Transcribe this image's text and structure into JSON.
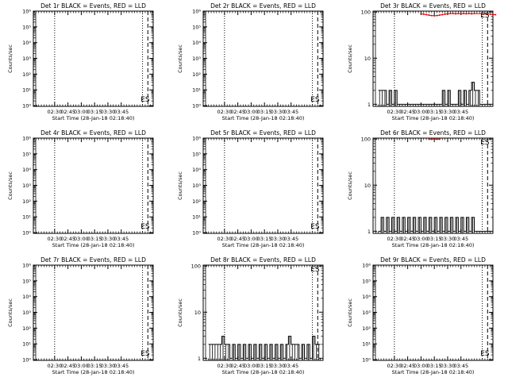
{
  "chart_data": [
    {
      "type": "line",
      "title": "Det 1r BLACK = Events, RED = LLD",
      "xlabel": "Start Time (28-Jan-18 02:18:40)",
      "ylabel": "Counts/sec",
      "ylog": true,
      "ylim": [
        0.9,
        1000000
      ],
      "ytick_labels": [
        "10⁰",
        "10¹",
        "10²",
        "10³",
        "10⁴",
        "10⁵",
        "10⁶"
      ],
      "event_label": "ES",
      "xticks": [
        "02:30",
        "02:45",
        "03:00",
        "03:15",
        "03:30",
        "03:45"
      ],
      "black": [],
      "red": []
    },
    {
      "type": "line",
      "title": "Det 2r BLACK = Events, RED = LLD",
      "xlabel": "Start Time (28-Jan-18 02:18:40)",
      "ylabel": "Counts/sec",
      "ylog": true,
      "ylim": [
        0.9,
        1000000
      ],
      "ytick_labels": [
        "10⁰",
        "10¹",
        "10²",
        "10³",
        "10⁴",
        "10⁵",
        "10⁶"
      ],
      "event_label": "ES",
      "xticks": [
        "02:30",
        "02:45",
        "03:00",
        "03:15",
        "03:30",
        "03:45"
      ],
      "black": [],
      "red": []
    },
    {
      "type": "line",
      "title": "Det 3r BLACK = Events, RED = LLD",
      "xlabel": "Start Time (28-Jan-18 02:18:40)",
      "ylabel": "Counts/sec",
      "ylog": true,
      "ylim": [
        0.9,
        105
      ],
      "ytick_labels": [
        "1",
        "10",
        "100"
      ],
      "event_label": "ES",
      "xticks": [
        "02:30",
        "02:45",
        "03:00",
        "03:15",
        "03:30",
        "03:45"
      ],
      "black": [
        [
          2,
          2
        ],
        [
          3,
          2
        ],
        [
          4,
          2
        ],
        [
          5,
          1
        ],
        [
          6,
          2
        ],
        [
          7,
          1
        ],
        [
          8,
          2
        ],
        [
          9,
          1
        ],
        [
          10,
          1
        ],
        [
          11,
          1
        ],
        [
          12,
          1
        ],
        [
          13,
          1
        ],
        [
          14,
          1
        ],
        [
          15,
          1
        ],
        [
          16,
          1
        ],
        [
          17,
          1
        ],
        [
          18,
          1
        ],
        [
          19,
          1
        ],
        [
          20,
          1
        ],
        [
          21,
          1
        ],
        [
          22,
          1
        ],
        [
          23,
          1
        ],
        [
          24,
          1
        ],
        [
          25,
          1
        ],
        [
          26,
          2
        ],
        [
          27,
          1
        ],
        [
          28,
          2
        ],
        [
          29,
          1
        ],
        [
          30,
          1
        ],
        [
          31,
          1
        ],
        [
          32,
          2
        ],
        [
          33,
          1
        ],
        [
          34,
          2
        ],
        [
          35,
          1
        ],
        [
          36,
          2
        ],
        [
          37,
          3
        ],
        [
          38,
          2
        ],
        [
          39,
          2
        ],
        [
          40,
          1
        ],
        [
          41,
          1
        ],
        [
          42,
          1
        ],
        [
          43,
          1
        ]
      ],
      "red": [
        [
          18,
          92
        ],
        [
          19,
          90
        ],
        [
          20,
          88
        ],
        [
          21,
          86
        ],
        [
          22,
          84
        ],
        [
          23,
          83
        ],
        [
          24,
          84
        ],
        [
          25,
          86
        ],
        [
          26,
          88
        ],
        [
          27,
          90
        ],
        [
          28,
          92
        ],
        [
          29,
          93
        ],
        [
          30,
          93
        ],
        [
          31,
          92
        ],
        [
          32,
          93
        ],
        [
          33,
          92
        ],
        [
          34,
          93
        ],
        [
          35,
          92
        ],
        [
          36,
          93
        ],
        [
          37,
          92
        ],
        [
          38,
          93
        ],
        [
          42,
          92
        ],
        [
          44,
          90
        ],
        [
          45,
          88
        ],
        [
          46,
          88
        ]
      ]
    },
    {
      "type": "line",
      "title": "Det 4r BLACK = Events, RED = LLD",
      "xlabel": "Start Time (28-Jan-18 02:18:40)",
      "ylabel": "Counts/sec",
      "ylog": true,
      "ylim": [
        0.9,
        1000000
      ],
      "ytick_labels": [
        "10⁰",
        "10¹",
        "10²",
        "10³",
        "10⁴",
        "10⁵",
        "10⁶"
      ],
      "event_label": "ES",
      "xticks": [
        "02:30",
        "02:45",
        "03:00",
        "03:15",
        "03:30",
        "03:45"
      ],
      "black": [],
      "red": []
    },
    {
      "type": "line",
      "title": "Det 5r BLACK = Events, RED = LLD",
      "xlabel": "Start Time (28-Jan-18 02:18:40)",
      "ylabel": "Counts/sec",
      "ylog": true,
      "ylim": [
        0.9,
        1000000
      ],
      "ytick_labels": [
        "10⁰",
        "10¹",
        "10²",
        "10³",
        "10⁴",
        "10⁵",
        "10⁶"
      ],
      "event_label": "ES",
      "xticks": [
        "02:30",
        "02:45",
        "03:00",
        "03:15",
        "03:30",
        "03:45"
      ],
      "black": [],
      "red": []
    },
    {
      "type": "line",
      "title": "Det 6r BLACK = Events, RED = LLD",
      "xlabel": "Start Time (28-Jan-18 02:18:40)",
      "ylabel": "Counts/sec",
      "ylog": true,
      "ylim": [
        0.9,
        105
      ],
      "ytick_labels": [
        "1",
        "10",
        "100"
      ],
      "event_label": "ES",
      "xticks": [
        "02:30",
        "02:45",
        "03:00",
        "03:15",
        "03:30",
        "03:45"
      ],
      "black": [
        [
          2,
          1
        ],
        [
          3,
          2
        ],
        [
          4,
          1
        ],
        [
          5,
          2
        ],
        [
          6,
          1
        ],
        [
          7,
          2
        ],
        [
          8,
          1
        ],
        [
          9,
          2
        ],
        [
          10,
          1
        ],
        [
          11,
          2
        ],
        [
          12,
          1
        ],
        [
          13,
          2
        ],
        [
          14,
          1
        ],
        [
          15,
          2
        ],
        [
          16,
          1
        ],
        [
          17,
          2
        ],
        [
          18,
          1
        ],
        [
          19,
          2
        ],
        [
          20,
          1
        ],
        [
          21,
          2
        ],
        [
          22,
          1
        ],
        [
          23,
          2
        ],
        [
          24,
          1
        ],
        [
          25,
          2
        ],
        [
          26,
          1
        ],
        [
          27,
          2
        ],
        [
          28,
          1
        ],
        [
          29,
          2
        ],
        [
          30,
          1
        ],
        [
          31,
          2
        ],
        [
          32,
          1
        ],
        [
          33,
          2
        ],
        [
          34,
          1
        ],
        [
          35,
          2
        ],
        [
          36,
          1
        ],
        [
          37,
          2
        ],
        [
          38,
          1
        ],
        [
          39,
          1
        ],
        [
          40,
          1
        ],
        [
          41,
          1
        ],
        [
          42,
          1
        ],
        [
          43,
          1
        ]
      ],
      "red": [
        [
          21,
          100
        ],
        [
          22,
          99
        ],
        [
          23,
          100
        ],
        [
          24,
          99
        ],
        [
          25,
          100
        ]
      ]
    },
    {
      "type": "line",
      "title": "Det 7r BLACK = Events, RED = LLD",
      "xlabel": "Start Time (28-Jan-18 02:18:40)",
      "ylabel": "Counts/sec",
      "ylog": true,
      "ylim": [
        0.9,
        1000000
      ],
      "ytick_labels": [
        "10⁰",
        "10¹",
        "10²",
        "10³",
        "10⁴",
        "10⁵",
        "10⁶"
      ],
      "event_label": "ES",
      "xticks": [
        "02:30",
        "02:45",
        "03:00",
        "03:15",
        "03:30",
        "03:45"
      ],
      "black": [],
      "red": []
    },
    {
      "type": "line",
      "title": "Det 8r BLACK = Events, RED = LLD",
      "xlabel": "Start Time (28-Jan-18 02:18:40)",
      "ylabel": "Counts/sec",
      "ylog": true,
      "ylim": [
        0.9,
        105
      ],
      "ytick_labels": [
        "1",
        "10",
        "100"
      ],
      "event_label": "ES",
      "xticks": [
        "02:30",
        "02:45",
        "03:00",
        "03:15",
        "03:30",
        "03:45"
      ],
      "black": [
        [
          2,
          2
        ],
        [
          3,
          2
        ],
        [
          4,
          2
        ],
        [
          5,
          2
        ],
        [
          6,
          2
        ],
        [
          7,
          3
        ],
        [
          8,
          2
        ],
        [
          9,
          2
        ],
        [
          10,
          1
        ],
        [
          11,
          2
        ],
        [
          12,
          1
        ],
        [
          13,
          2
        ],
        [
          14,
          1
        ],
        [
          15,
          2
        ],
        [
          16,
          1
        ],
        [
          17,
          2
        ],
        [
          18,
          1
        ],
        [
          19,
          2
        ],
        [
          20,
          1
        ],
        [
          21,
          2
        ],
        [
          22,
          1
        ],
        [
          23,
          2
        ],
        [
          24,
          1
        ],
        [
          25,
          2
        ],
        [
          26,
          1
        ],
        [
          27,
          2
        ],
        [
          28,
          1
        ],
        [
          29,
          2
        ],
        [
          30,
          1
        ],
        [
          31,
          2
        ],
        [
          32,
          3
        ],
        [
          33,
          2
        ],
        [
          34,
          2
        ],
        [
          35,
          2
        ],
        [
          36,
          1
        ],
        [
          37,
          2
        ],
        [
          38,
          1
        ],
        [
          39,
          2
        ],
        [
          40,
          1
        ],
        [
          41,
          3
        ],
        [
          42,
          2
        ],
        [
          43,
          2
        ]
      ],
      "red": []
    },
    {
      "type": "line",
      "title": "Det 9r BLACK = Events, RED = LLD",
      "xlabel": "Start Time (28-Jan-18 02:18:40)",
      "ylabel": "Counts/sec",
      "ylog": true,
      "ylim": [
        0.9,
        1000000
      ],
      "ytick_labels": [
        "10⁰",
        "10¹",
        "10²",
        "10³",
        "10⁴",
        "10⁵",
        "10⁶"
      ],
      "event_label": "ES",
      "xticks": [
        "02:30",
        "02:45",
        "03:00",
        "03:15",
        "03:30",
        "03:45"
      ],
      "black": [],
      "red": []
    }
  ]
}
